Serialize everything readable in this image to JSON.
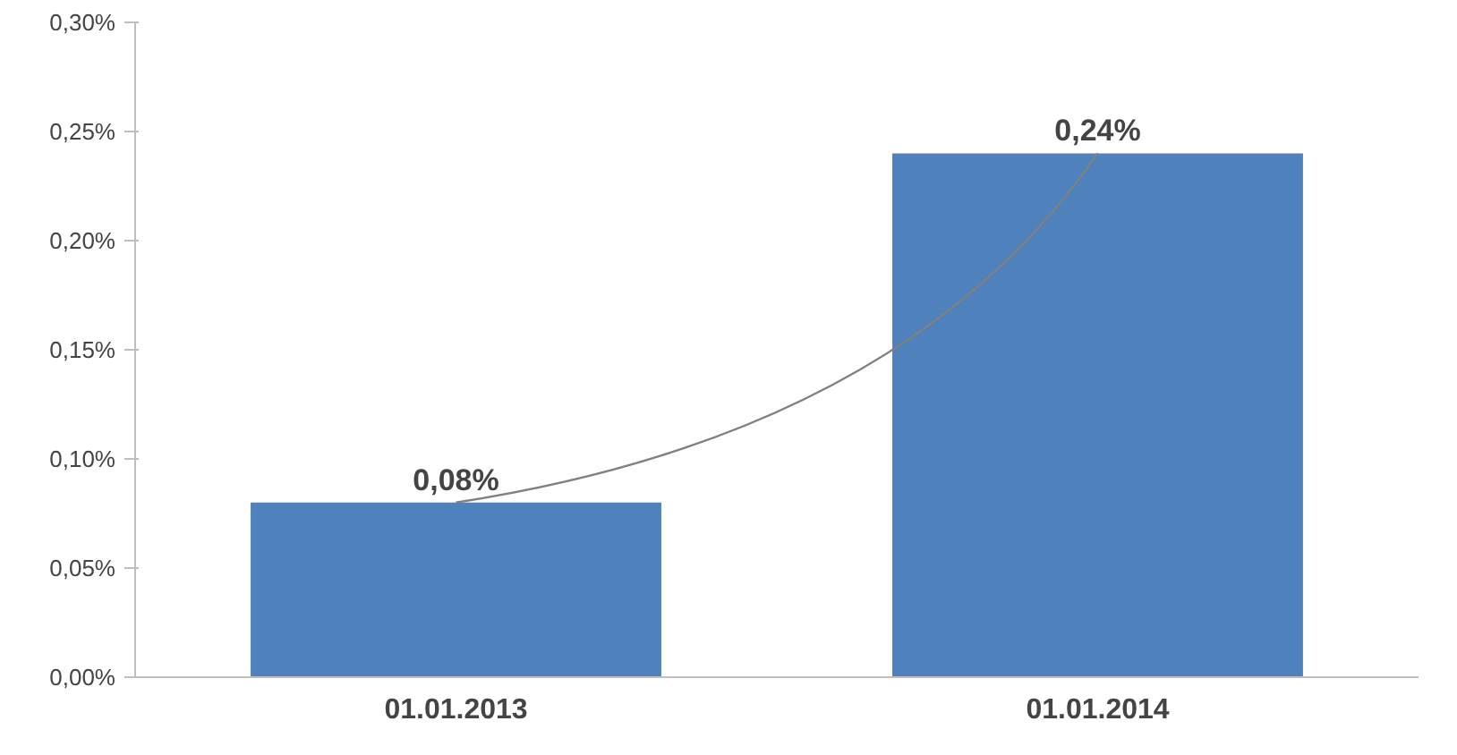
{
  "chart_data": {
    "type": "bar",
    "categories": [
      "01.01.2013",
      "01.01.2014"
    ],
    "series": [
      {
        "color": "#4f81bd",
        "values": [
          0.08,
          0.24
        ],
        "value_labels": [
          "0,08%",
          "0,24%"
        ]
      },
      {
        "type": "line",
        "color": "#808080",
        "x": [
          "01.01.2013",
          "01.01.2014"
        ],
        "values": [
          0.08,
          0.24
        ]
      }
    ],
    "ylim": [
      0,
      0.3
    ],
    "yticks": [
      {
        "value": 0,
        "label": "0,00%"
      },
      {
        "value": 0.05,
        "label": "0,05%"
      },
      {
        "value": 0.1,
        "label": "0,10%"
      },
      {
        "value": 0.15,
        "label": "0,15%"
      },
      {
        "value": 0.2,
        "label": "0,20%"
      },
      {
        "value": 0.25,
        "label": "0,25%"
      },
      {
        "value": 0.3,
        "label": "0,30%"
      }
    ],
    "grid": false
  }
}
